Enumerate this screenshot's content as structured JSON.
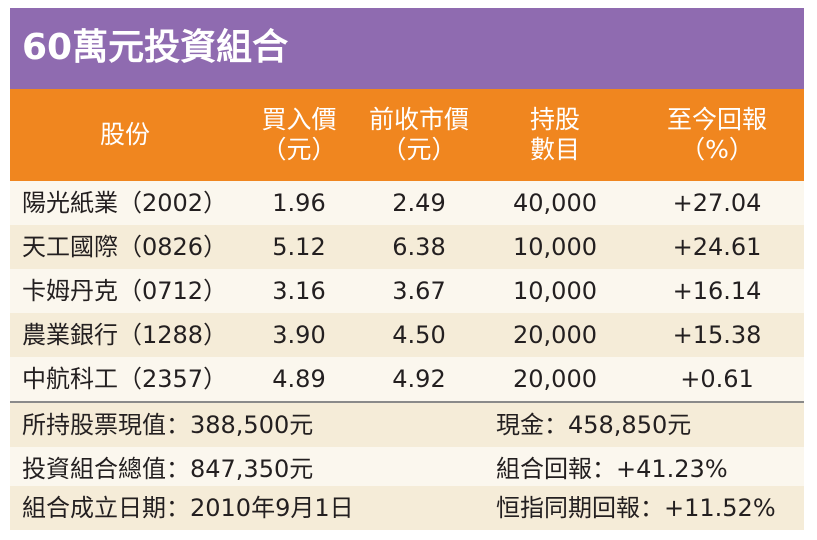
{
  "title": "60萬元投資組合",
  "headers": {
    "stock": "股份",
    "buy": [
      "買入價",
      "（元）"
    ],
    "prev": [
      "前收市價",
      "（元）"
    ],
    "qty": [
      "持股",
      "數目"
    ],
    "ret": [
      "至今回報",
      "（%）"
    ]
  },
  "rows": [
    {
      "stock": "陽光紙業（2002）",
      "buy": "1.96",
      "prev": "2.49",
      "qty": "40,000",
      "ret": "+27.04"
    },
    {
      "stock": "天工國際（0826）",
      "buy": "5.12",
      "prev": "6.38",
      "qty": "10,000",
      "ret": "+24.61"
    },
    {
      "stock": "卡姆丹克（0712）",
      "buy": "3.16",
      "prev": "3.67",
      "qty": "10,000",
      "ret": "+16.14"
    },
    {
      "stock": "農業銀行（1288）",
      "buy": "3.90",
      "prev": "4.50",
      "qty": "20,000",
      "ret": "+15.38"
    },
    {
      "stock": "中航科工（2357）",
      "buy": "4.89",
      "prev": "4.92",
      "qty": "20,000",
      "ret": "+0.61"
    }
  ],
  "summary": {
    "held_value": "所持股票現值：388,500元",
    "cash": "現金：458,850元",
    "total_value": "投資組合總值：847,350元",
    "portfolio_return": "組合回報：+41.23%",
    "inception": "組合成立日期：2010年9月1日",
    "hsi_return": "恒指同期回報：+11.52%"
  },
  "colors": {
    "title_bg": "#8f6bb0",
    "header_bg": "#f0861f",
    "row_alt_bg": "#f5ecd8",
    "card_bg": "#fbf7ee"
  }
}
